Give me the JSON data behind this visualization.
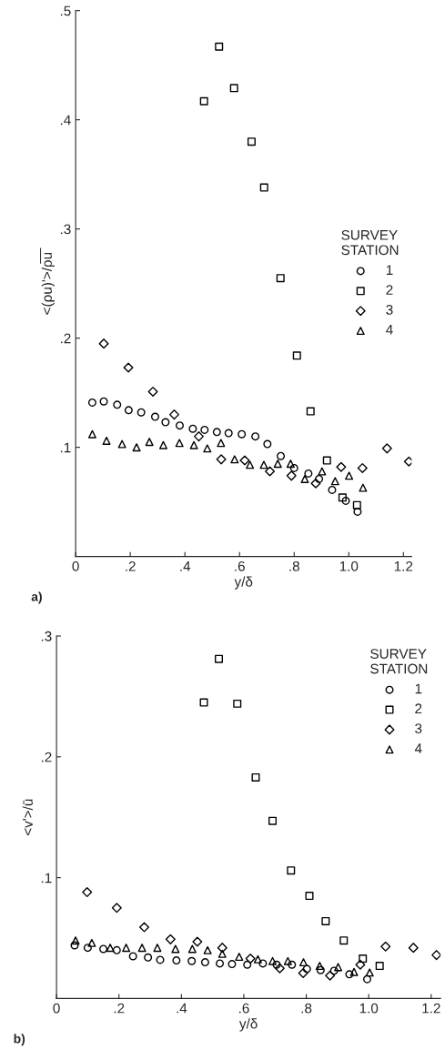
{
  "chart_data": [
    {
      "type": "scatter",
      "xlabel": "y/δ",
      "ylabel": "<(ρu)'>/ρ̅u̅",
      "legend_title": "SURVEY\nSTATION",
      "legend": "right",
      "grid": false,
      "annotations": [
        "a)"
      ],
      "xlim": [
        0,
        1.23
      ],
      "xticks": [
        0,
        {
          "value": 0.2,
          "label": ".2"
        },
        {
          "value": 0.4,
          "label": ".4"
        },
        {
          "value": 0.6,
          "label": ".6"
        },
        {
          "value": 0.8,
          "label": ".8"
        },
        {
          "value": 1.0,
          "label": "1.0"
        },
        {
          "value": 1.2,
          "label": "1.2"
        }
      ],
      "ylim": [
        0,
        0.5
      ],
      "yticks": [
        {
          "value": 0.1,
          "label": ".1"
        },
        {
          "value": 0.2,
          "label": ".2"
        },
        {
          "value": 0.3,
          "label": ".3"
        },
        {
          "value": 0.4,
          "label": ".4"
        },
        {
          "value": 0.5,
          "label": ".5"
        }
      ],
      "series": [
        {
          "name": "1",
          "color": "#000000",
          "marker": "circle",
          "x": [
            0.061,
            0.103,
            0.152,
            0.194,
            0.24,
            0.291,
            0.329,
            0.381,
            0.429,
            0.472,
            0.517,
            0.56,
            0.608,
            0.658,
            0.702,
            0.751,
            0.8,
            0.852,
            0.891,
            0.939,
            0.989,
            1.032
          ],
          "values": [
            0.141,
            0.142,
            0.139,
            0.134,
            0.132,
            0.128,
            0.123,
            0.12,
            0.117,
            0.116,
            0.114,
            0.113,
            0.112,
            0.11,
            0.103,
            0.092,
            0.081,
            0.076,
            0.071,
            0.061,
            0.051,
            0.041
          ]
        },
        {
          "name": "2",
          "color": "#000000",
          "marker": "square",
          "x": [
            0.47,
            0.525,
            0.58,
            0.644,
            0.69,
            0.75,
            0.81,
            0.86,
            0.92,
            0.977,
            1.03
          ],
          "values": [
            0.417,
            0.467,
            0.429,
            0.38,
            0.338,
            0.255,
            0.184,
            0.133,
            0.088,
            0.054,
            0.047
          ]
        },
        {
          "name": "3",
          "color": "#000000",
          "marker": "diamond",
          "x": [
            0.103,
            0.193,
            0.283,
            0.361,
            0.451,
            0.533,
            0.619,
            0.711,
            0.79,
            0.879,
            0.972,
            1.05,
            1.14,
            1.22
          ],
          "values": [
            0.195,
            0.173,
            0.151,
            0.13,
            0.11,
            0.089,
            0.088,
            0.078,
            0.074,
            0.067,
            0.082,
            0.081,
            0.099,
            0.087
          ]
        },
        {
          "name": "4",
          "color": "#000000",
          "marker": "triangle",
          "x": [
            0.061,
            0.113,
            0.17,
            0.223,
            0.27,
            0.321,
            0.38,
            0.433,
            0.482,
            0.532,
            0.582,
            0.638,
            0.689,
            0.74,
            0.787,
            0.839,
            0.902,
            0.95,
            1.001,
            1.052
          ],
          "values": [
            0.112,
            0.106,
            0.103,
            0.1,
            0.105,
            0.102,
            0.104,
            0.102,
            0.099,
            0.104,
            0.089,
            0.084,
            0.084,
            0.085,
            0.085,
            0.071,
            0.078,
            0.069,
            0.074,
            0.063
          ]
        }
      ]
    },
    {
      "type": "scatter",
      "xlabel": "y/δ",
      "ylabel": "<v'>/ū",
      "legend_title": "SURVEY\nSTATION",
      "legend": "top right",
      "grid": false,
      "annotations": [
        "b)"
      ],
      "xlim": [
        0,
        1.23
      ],
      "xticks": [
        0,
        {
          "value": 0.2,
          "label": ".2"
        },
        {
          "value": 0.4,
          "label": ".4"
        },
        {
          "value": 0.6,
          "label": ".6"
        },
        {
          "value": 0.8,
          "label": ".8"
        },
        {
          "value": 1.0,
          "label": "1.0"
        },
        {
          "value": 1.2,
          "label": "1.2"
        }
      ],
      "ylim": [
        0,
        0.3
      ],
      "yticks": [
        {
          "value": 0.1,
          "label": ".1"
        },
        {
          "value": 0.2,
          "label": ".2"
        },
        {
          "value": 0.3,
          "label": ".3"
        }
      ],
      "series": [
        {
          "name": "1",
          "color": "#000000",
          "marker": "circle",
          "x": [
            0.058,
            0.1,
            0.15,
            0.193,
            0.245,
            0.293,
            0.332,
            0.384,
            0.433,
            0.476,
            0.523,
            0.562,
            0.611,
            0.661,
            0.705,
            0.754,
            0.802,
            0.846,
            0.889,
            0.938,
            0.995
          ],
          "values": [
            0.044,
            0.042,
            0.041,
            0.04,
            0.035,
            0.034,
            0.032,
            0.0315,
            0.031,
            0.03,
            0.029,
            0.0285,
            0.028,
            0.029,
            0.028,
            0.028,
            0.0245,
            0.0235,
            0.023,
            0.02,
            0.016
          ]
        },
        {
          "name": "2",
          "color": "#000000",
          "marker": "square",
          "x": [
            0.472,
            0.52,
            0.579,
            0.638,
            0.692,
            0.751,
            0.81,
            0.862,
            0.92,
            0.981,
            1.035
          ],
          "values": [
            0.245,
            0.281,
            0.244,
            0.183,
            0.147,
            0.106,
            0.085,
            0.064,
            0.048,
            0.033,
            0.027
          ]
        },
        {
          "name": "3",
          "color": "#000000",
          "marker": "diamond",
          "x": [
            0.098,
            0.193,
            0.281,
            0.365,
            0.451,
            0.531,
            0.621,
            0.715,
            0.79,
            0.876,
            0.973,
            1.054,
            1.143,
            1.217
          ],
          "values": [
            0.088,
            0.075,
            0.059,
            0.049,
            0.047,
            0.042,
            0.033,
            0.025,
            0.021,
            0.019,
            0.028,
            0.043,
            0.042,
            0.036
          ]
        },
        {
          "name": "4",
          "color": "#000000",
          "marker": "triangle",
          "x": [
            0.061,
            0.113,
            0.172,
            0.223,
            0.274,
            0.323,
            0.381,
            0.435,
            0.484,
            0.531,
            0.585,
            0.645,
            0.692,
            0.741,
            0.791,
            0.843,
            0.902,
            0.953,
            1.003
          ],
          "values": [
            0.048,
            0.046,
            0.042,
            0.042,
            0.042,
            0.042,
            0.041,
            0.041,
            0.04,
            0.037,
            0.0345,
            0.0325,
            0.031,
            0.031,
            0.03,
            0.027,
            0.026,
            0.022,
            0.0215
          ]
        }
      ]
    }
  ]
}
